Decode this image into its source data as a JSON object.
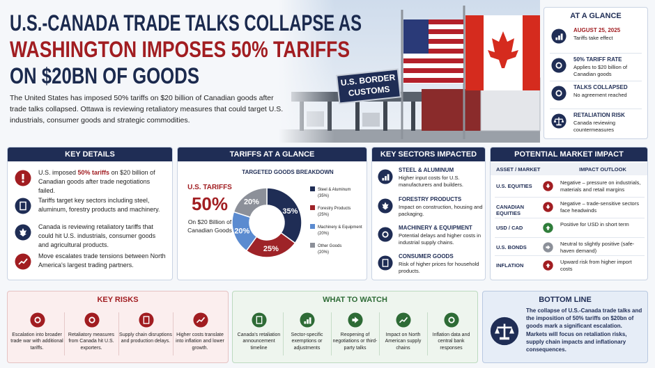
{
  "header": {
    "title_lines": [
      "U.S.-CANADA TRADE TALKS COLLAPSE AS",
      "WASHINGTON IMPOSES 50% TARIFFS",
      "ON $20BN OF GOODS"
    ],
    "intro": "The United States has imposed 50% tariffs on $20 billion of Canadian goods after trade talks collapsed. Ottawa is reviewing retaliatory measures that could target U.S. industrials, consumer goods and strategic commodities."
  },
  "photo": {
    "sign": [
      "U.S. BORDER",
      "CUSTOMS"
    ]
  },
  "at_a_glance": {
    "title": "AT A GLANCE",
    "items": [
      {
        "heading": "AUGUST 25, 2025",
        "text": "Tariffs take effect"
      },
      {
        "heading": "50% TARIFF RATE",
        "text": "Applies to $20 billion of Canadian goods"
      },
      {
        "heading": "TALKS COLLAPSED",
        "text": "No agreement reached"
      },
      {
        "heading": "RETALIATION RISK",
        "text": "Canada reviewing countermeasures"
      }
    ]
  },
  "key_details": {
    "title": "KEY DETAILS",
    "items": [
      [
        "U.S. imposed ",
        "50% tariffs",
        " on $20 billion of Canadian goods after trade negotiations failed."
      ],
      [
        "Tariffs target key sectors including steel, aluminum, forestry products and machinery."
      ],
      [
        "Canada is reviewing retaliatory tariffs that could hit U.S. industrials, consumer goods and agricultural products."
      ],
      [
        "Move escalates trade tensions between North America's largest trading partners."
      ]
    ]
  },
  "tariffs_at_a_glance": {
    "title": "TARIFFS AT A GLANCE",
    "label": "U.S. TARIFFS",
    "rate": "50%",
    "note": "On $20 Billion of Canadian Goods"
  },
  "chart_data": {
    "type": "donut",
    "title": "TARGETED GOODS BREAKDOWN",
    "categories": [
      "Steel & Aluminum",
      "Forestry Products",
      "Machinery & Equipment",
      "Other Goods"
    ],
    "legend_shares": [
      "(35%)",
      "(25%)",
      "(20%)",
      "(20%)"
    ],
    "values": [
      35,
      25,
      20,
      20
    ],
    "value_labels": [
      "35%",
      "25%",
      "20%",
      "20%"
    ],
    "colors": [
      "#1f2d55",
      "#9e2328",
      "#5b8bd0",
      "#8c9099"
    ]
  },
  "key_sectors": {
    "title": "KEY SECTORS IMPACTED",
    "items": [
      {
        "heading": "STEEL & ALUMINUM",
        "text": "Higher input costs for U.S. manufacturers and builders."
      },
      {
        "heading": "FORESTRY PRODUCTS",
        "text": "Impact on construction, housing and packaging."
      },
      {
        "heading": "MACHINERY & EQUIPMENT",
        "text": "Potential delays and higher costs in industrial supply chains."
      },
      {
        "heading": "CONSUMER GOODS",
        "text": "Risk of higher prices for household products."
      }
    ]
  },
  "market_impact": {
    "title": "POTENTIAL MARKET IMPACT",
    "columns": [
      "ASSET / MARKET",
      "IMPACT OUTLOOK"
    ],
    "rows": [
      [
        "U.S. EQUITIES",
        "Negative – pressure on industrials, materials and retail margins"
      ],
      [
        "CANADIAN EQUITIES",
        "Negative – trade-sensitive sectors face headwinds"
      ],
      [
        "USD / CAD",
        "Positive for USD in short term"
      ],
      [
        "U.S. BONDS",
        "Neutral to slightly positive (safe-haven demand)"
      ],
      [
        "INFLATION",
        "Upward risk from higher import costs"
      ]
    ]
  },
  "key_risks": {
    "title": "KEY RISKS",
    "items": [
      "Escalation into broader trade war with additional tariffs.",
      "Retaliatory measures from Canada hit U.S. exporters.",
      "Supply chain disruptions and production delays.",
      "Higher costs translate into inflation and lower growth."
    ]
  },
  "what_to_watch": {
    "title": "WHAT TO WATCH",
    "items": [
      "Canada's retaliation announcement timeline",
      "Sector-specific exemptions or adjustments",
      "Reopening of negotiations or third-party talks",
      "Impact on North American supply chains",
      "Inflation data and central bank responses"
    ]
  },
  "bottom_line": {
    "title": "BOTTOM LINE",
    "text": "The collapse of U.S.-Canada trade talks and the imposition of 50% tariffs on $20bn of goods mark a significant escalation. Markets will focus on retaliation risks, supply chain impacts and inflationary consequences."
  }
}
